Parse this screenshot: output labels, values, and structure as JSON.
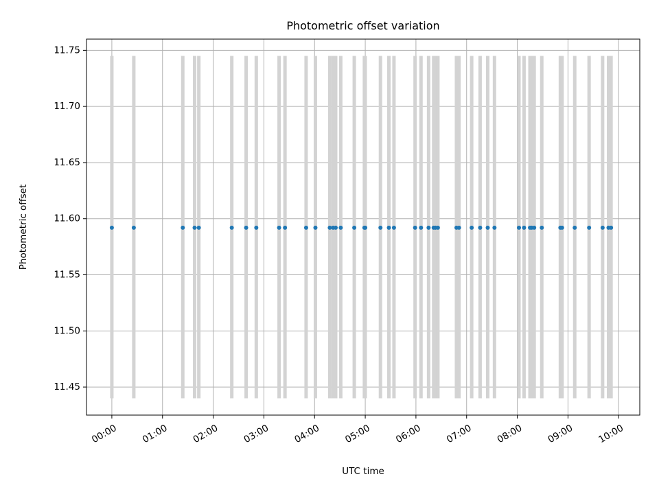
{
  "chart_data": {
    "type": "scatter",
    "title": "Photometric offset variation",
    "xlabel": "UTC time",
    "ylabel": "Photometric offset",
    "xlim": [
      "23:30",
      "10:25"
    ],
    "ylim": [
      11.425,
      11.76
    ],
    "x_ticks": [
      "00:00",
      "01:00",
      "02:00",
      "03:00",
      "04:00",
      "05:00",
      "06:00",
      "07:00",
      "08:00",
      "09:00",
      "10:00"
    ],
    "y_ticks": [
      "11.45",
      "11.50",
      "11.55",
      "11.60",
      "11.65",
      "11.70",
      "11.75"
    ],
    "grid": true,
    "error_bar_range": [
      11.44,
      11.745
    ],
    "series": [
      {
        "marker_color": "#1f77b4",
        "error_bar_color": "#d3d3d3",
        "x": [
          "00:00",
          "00:26",
          "01:24",
          "01:38",
          "01:43",
          "02:22",
          "02:39",
          "02:51",
          "03:18",
          "03:25",
          "03:50",
          "04:01",
          "04:18",
          "04:22",
          "04:25",
          "04:31",
          "04:47",
          "04:59",
          "05:00",
          "05:18",
          "05:28",
          "05:34",
          "05:59",
          "06:06",
          "06:15",
          "06:21",
          "06:23",
          "06:26",
          "06:48",
          "06:51",
          "07:06",
          "07:16",
          "07:25",
          "07:33",
          "08:02",
          "08:08",
          "08:15",
          "08:17",
          "08:20",
          "08:29",
          "08:51",
          "08:53",
          "09:08",
          "09:25",
          "09:41",
          "09:48",
          "09:51"
        ],
        "y": [
          11.592,
          11.592,
          11.592,
          11.592,
          11.592,
          11.592,
          11.592,
          11.592,
          11.592,
          11.592,
          11.592,
          11.592,
          11.592,
          11.592,
          11.592,
          11.592,
          11.592,
          11.592,
          11.592,
          11.592,
          11.592,
          11.592,
          11.592,
          11.592,
          11.592,
          11.592,
          11.592,
          11.592,
          11.592,
          11.592,
          11.592,
          11.592,
          11.592,
          11.592,
          11.592,
          11.592,
          11.592,
          11.592,
          11.592,
          11.592,
          11.592,
          11.592,
          11.592,
          11.592,
          11.592,
          11.592,
          11.592
        ]
      }
    ]
  }
}
